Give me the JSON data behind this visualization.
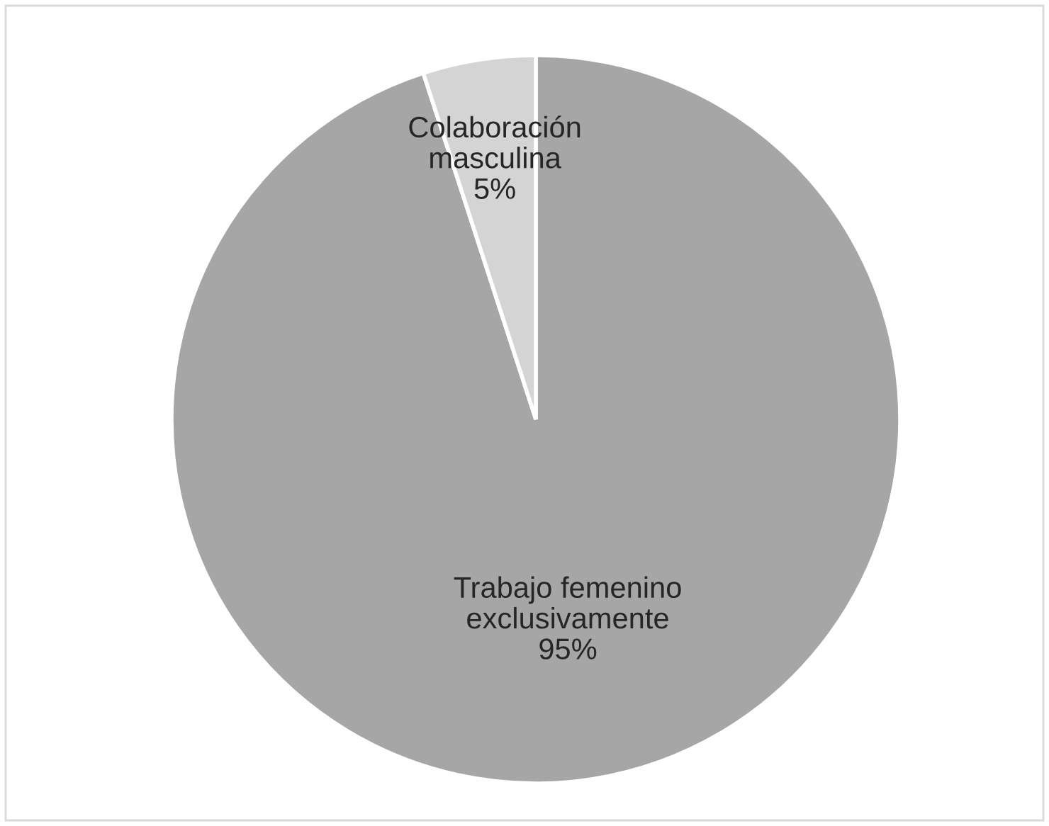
{
  "chart_data": {
    "type": "pie",
    "categories": [
      "Trabajo femenino exclusivamente",
      "Colaboración masculina"
    ],
    "values": [
      95,
      5
    ],
    "colors": [
      "#a6a6a6",
      "#d4d4d4"
    ],
    "value_labels": [
      "95%",
      "5%"
    ]
  }
}
